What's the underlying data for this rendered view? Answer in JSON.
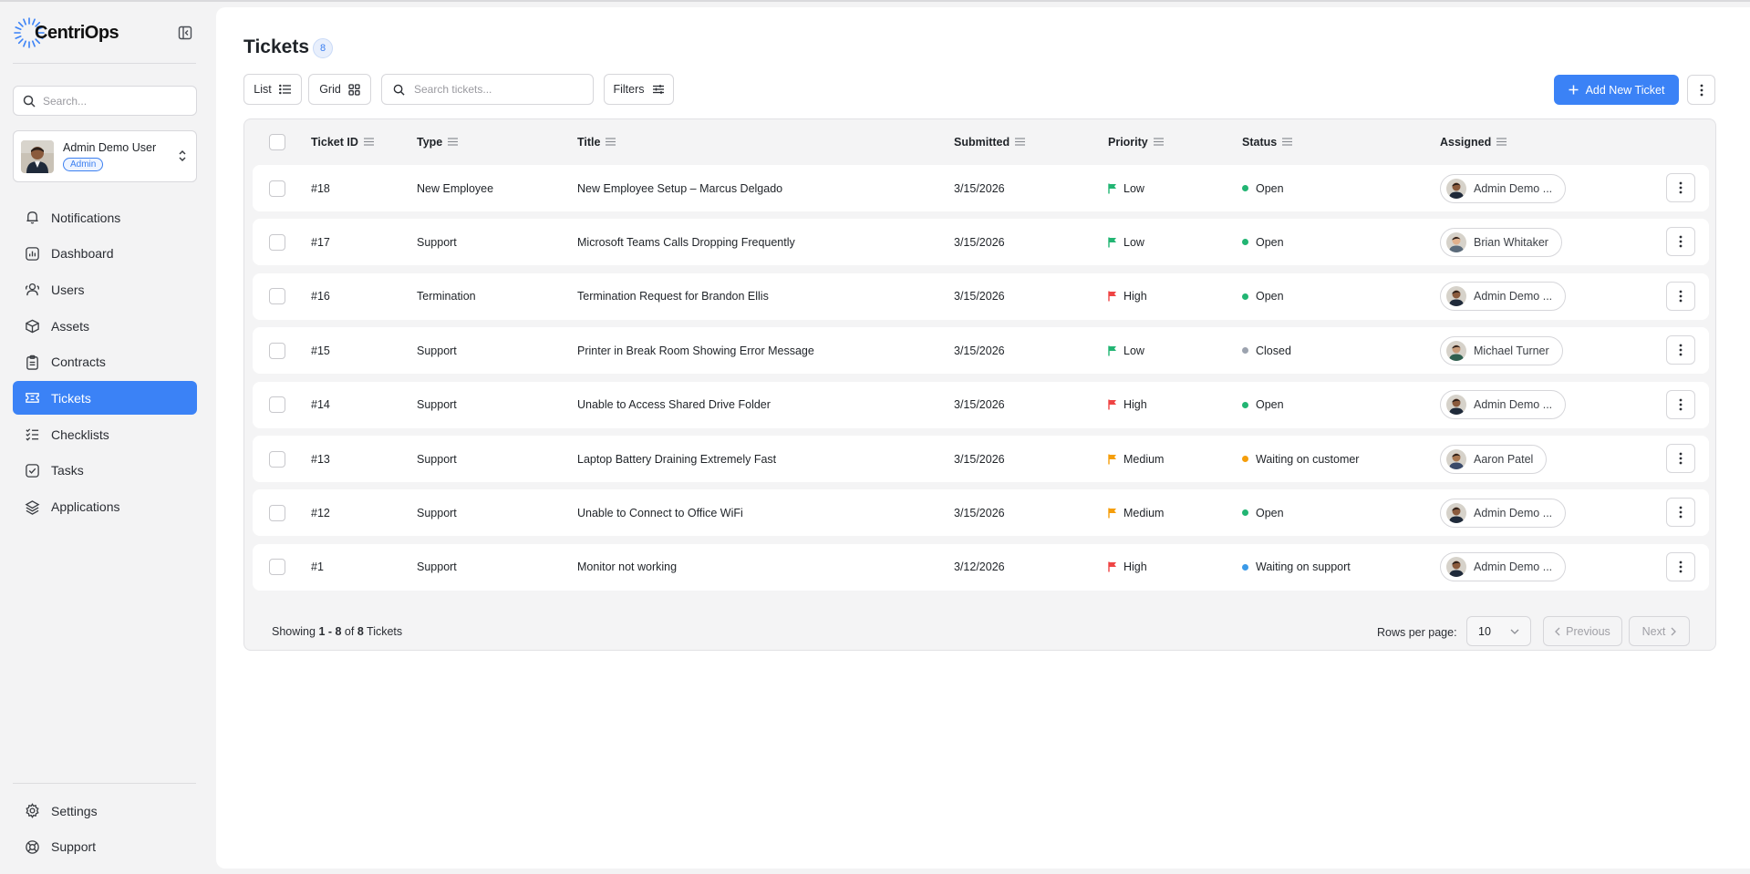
{
  "app": {
    "name": "CentriOps"
  },
  "sidebar": {
    "search_placeholder": "Search...",
    "user": {
      "name": "Admin Demo User",
      "role": "Admin"
    },
    "nav": [
      {
        "label": "Notifications",
        "icon": "bell-icon"
      },
      {
        "label": "Dashboard",
        "icon": "chart-icon"
      },
      {
        "label": "Users",
        "icon": "users-icon"
      },
      {
        "label": "Assets",
        "icon": "box-icon"
      },
      {
        "label": "Contracts",
        "icon": "clipboard-icon"
      },
      {
        "label": "Tickets",
        "icon": "ticket-icon",
        "active": true
      },
      {
        "label": "Checklists",
        "icon": "checklist-icon"
      },
      {
        "label": "Tasks",
        "icon": "check-square-icon"
      },
      {
        "label": "Applications",
        "icon": "layers-icon"
      }
    ],
    "bottom_nav": [
      {
        "label": "Settings",
        "icon": "gear-icon"
      },
      {
        "label": "Support",
        "icon": "lifebuoy-icon"
      }
    ]
  },
  "page": {
    "title": "Tickets",
    "count": "8",
    "view_list": "List",
    "view_grid": "Grid",
    "search_placeholder": "Search tickets...",
    "filters": "Filters",
    "add_button": "Add New Ticket"
  },
  "table": {
    "columns": [
      "Ticket ID",
      "Type",
      "Title",
      "Submitted",
      "Priority",
      "Status",
      "Assigned"
    ],
    "rows": [
      {
        "id": "#18",
        "type": "New Employee",
        "title": "New Employee Setup – Marcus Delgado",
        "submitted": "3/15/2026",
        "priority": "Low",
        "status": "Open",
        "assigned": "Admin Demo ..."
      },
      {
        "id": "#17",
        "type": "Support",
        "title": "Microsoft Teams Calls Dropping Frequently",
        "submitted": "3/15/2026",
        "priority": "Low",
        "status": "Open",
        "assigned": "Brian Whitaker"
      },
      {
        "id": "#16",
        "type": "Termination",
        "title": "Termination Request for Brandon Ellis",
        "submitted": "3/15/2026",
        "priority": "High",
        "status": "Open",
        "assigned": "Admin Demo ..."
      },
      {
        "id": "#15",
        "type": "Support",
        "title": "Printer in Break Room Showing Error Message",
        "submitted": "3/15/2026",
        "priority": "Low",
        "status": "Closed",
        "assigned": "Michael Turner"
      },
      {
        "id": "#14",
        "type": "Support",
        "title": "Unable to Access Shared Drive Folder",
        "submitted": "3/15/2026",
        "priority": "High",
        "status": "Open",
        "assigned": "Admin Demo ..."
      },
      {
        "id": "#13",
        "type": "Support",
        "title": "Laptop Battery Draining Extremely Fast",
        "submitted": "3/15/2026",
        "priority": "Medium",
        "status": "Waiting on customer",
        "assigned": "Aaron Patel"
      },
      {
        "id": "#12",
        "type": "Support",
        "title": "Unable to Connect to Office WiFi",
        "submitted": "3/15/2026",
        "priority": "Medium",
        "status": "Open",
        "assigned": "Admin Demo ..."
      },
      {
        "id": "#1",
        "type": "Support",
        "title": "Monitor not working",
        "submitted": "3/12/2026",
        "priority": "High",
        "status": "Waiting on support",
        "assigned": "Admin Demo ..."
      }
    ]
  },
  "footer": {
    "showing_prefix": "Showing ",
    "showing_range": "1 - 8",
    "showing_of": " of ",
    "showing_total": "8",
    "showing_suffix": " Tickets",
    "rows_per_page_label": "Rows per page:",
    "rows_per_page_value": "10",
    "previous": "Previous",
    "next": "Next"
  },
  "colors": {
    "accent": "#3b82f6",
    "priority_low": "#22b573",
    "priority_medium": "#f59e0b",
    "priority_high": "#ef4444",
    "status_open": "#22b573",
    "status_closed": "#9ca3af",
    "status_waiting_customer": "#f59e0b",
    "status_waiting_support": "#3b9ae8"
  }
}
